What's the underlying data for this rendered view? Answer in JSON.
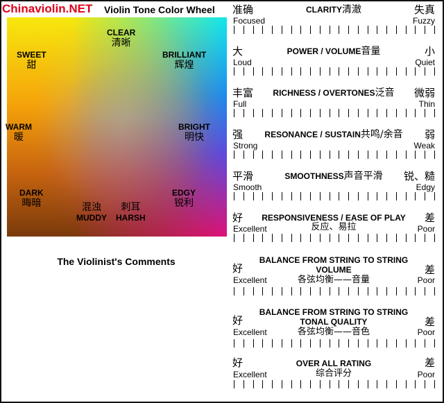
{
  "watermark": "Chinaviolin.NET",
  "wheel": {
    "title": "Violin Tone Color Wheel",
    "labels": [
      {
        "en": "CLEAR",
        "cn": "清晰",
        "order": "en-cn"
      },
      {
        "en": "SWEET",
        "cn": "甜",
        "order": "en-cn"
      },
      {
        "en": "BRILLIANT",
        "cn": "辉煌",
        "order": "en-cn"
      },
      {
        "en": "WARM",
        "cn": "暖",
        "order": "en-cn"
      },
      {
        "en": "BRIGHT",
        "cn": "明快",
        "order": "en-cn"
      },
      {
        "en": "DARK",
        "cn": "晦暗",
        "order": "en-cn"
      },
      {
        "en": "EDGY",
        "cn": "锐利",
        "order": "en-cn"
      },
      {
        "en": "MUDDY",
        "cn": "混浊",
        "order": "cn-en"
      },
      {
        "en": "HARSH",
        "cn": "刺耳",
        "order": "cn-en"
      }
    ],
    "colors": {
      "top_left": "#f7e80e",
      "top_right": "#10e8ee",
      "right": "#1b8cf0",
      "bottom_right": "#e0107a",
      "bottom_left": "#7a3a0c",
      "left": "#f5a20a"
    }
  },
  "comments_title": "The Violinist's Comments",
  "scales": [
    {
      "title": "CLARITY",
      "title_cn": "清澈",
      "left_cn": "准确",
      "left_en": "Focused",
      "right_cn": "失真",
      "right_en": "Fuzzy"
    },
    {
      "title": "POWER / VOLUME",
      "title_cn": "音量",
      "left_cn": "大",
      "left_en": "Loud",
      "right_cn": "小",
      "right_en": "Quiet"
    },
    {
      "title": "RICHNESS / OVERTONES",
      "title_cn": "泛音",
      "left_cn": "丰富",
      "left_en": "Full",
      "right_cn": "微弱",
      "right_en": "Thin"
    },
    {
      "title": "RESONANCE / SUSTAIN",
      "title_cn": "共鸣/余音",
      "left_cn": "强",
      "left_en": "Strong",
      "right_cn": "弱",
      "right_en": "Weak"
    },
    {
      "title": "SMOOTHNESS",
      "title_cn": "声音平滑",
      "left_cn": "平滑",
      "left_en": "Smooth",
      "right_cn": "锐、糙",
      "right_en": "Edgy"
    },
    {
      "title": "RESPONSIVENESS / EASE OF PLAY",
      "subtitle": "反应、易拉",
      "left_cn": "好",
      "left_en": "Excellent",
      "right_cn": "差",
      "right_en": "Poor"
    },
    {
      "title": "BALANCE FROM STRING TO STRING",
      "title2": "VOLUME",
      "subtitle": "各弦均衡——音量",
      "left_cn": "好",
      "left_en": "Excellent",
      "right_cn": "差",
      "right_en": "Poor"
    },
    {
      "title": "BALANCE FROM STRING TO STRING",
      "title2": "TONAL QUALITY",
      "subtitle": "各弦均衡——音色",
      "left_cn": "好",
      "left_en": "Excellent",
      "right_cn": "差",
      "right_en": "Poor"
    },
    {
      "title": "OVER ALL RATING",
      "subtitle": "综合评分",
      "left_cn": "好",
      "left_en": "Excellent",
      "right_cn": "差",
      "right_en": "Poor"
    }
  ]
}
